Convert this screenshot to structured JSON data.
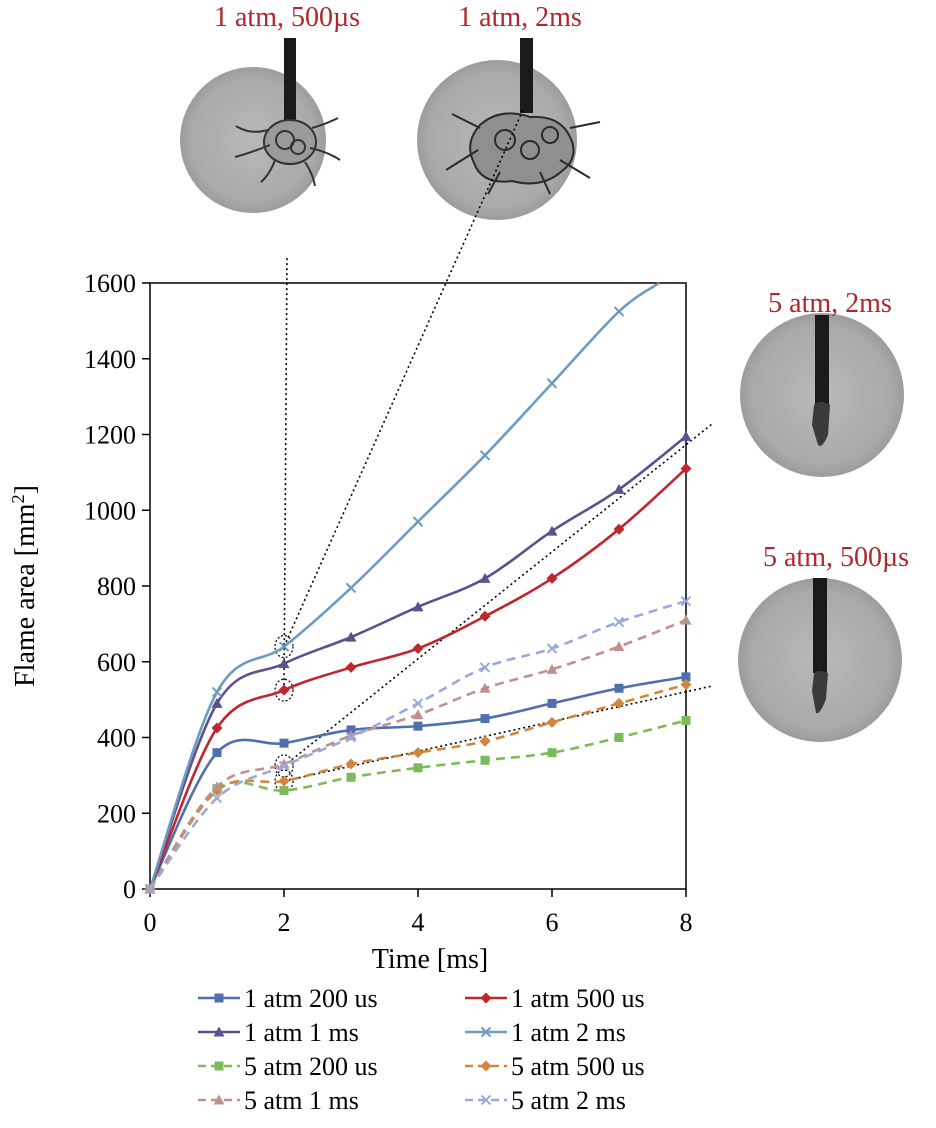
{
  "chart_data": {
    "type": "line",
    "xlabel": "Time [ms]",
    "ylabel": "Flame area [mm",
    "ylabel_sup": "2",
    "ylabel_end": "]",
    "xlim": [
      0,
      8
    ],
    "ylim": [
      0,
      1600
    ],
    "xticks": [
      "0",
      "2",
      "4",
      "6",
      "8"
    ],
    "yticks": [
      "0",
      "200",
      "400",
      "600",
      "800",
      "1000",
      "1200",
      "1400",
      "1600"
    ],
    "grid": false,
    "legend_position": "bottom",
    "series": [
      {
        "name": "1 atm 200 us",
        "color": "#4f6fad",
        "dash": false,
        "marker": "square",
        "x": [
          0,
          1,
          2,
          3,
          4,
          5,
          6,
          7,
          8
        ],
        "y": [
          0,
          360,
          385,
          420,
          430,
          450,
          490,
          530,
          560
        ]
      },
      {
        "name": "1 atm 500 us",
        "color": "#c0262d",
        "dash": false,
        "marker": "diamond",
        "x": [
          0,
          1,
          2,
          3,
          4,
          5,
          6,
          7,
          8
        ],
        "y": [
          0,
          425,
          525,
          585,
          635,
          720,
          820,
          950,
          1110
        ]
      },
      {
        "name": "1 atm 1 ms",
        "color": "#5e4f8f",
        "dash": false,
        "marker": "triangle",
        "x": [
          0,
          1,
          2,
          3,
          4,
          5,
          6,
          7,
          8
        ],
        "y": [
          0,
          490,
          595,
          665,
          745,
          820,
          945,
          1055,
          1195
        ]
      },
      {
        "name": "1 atm 2 ms",
        "color": "#6e9bbf",
        "dash": false,
        "marker": "x",
        "x": [
          0,
          1,
          2,
          3,
          4,
          5,
          6,
          7,
          7.6
        ],
        "y": [
          0,
          520,
          640,
          795,
          970,
          1145,
          1335,
          1525,
          1600
        ]
      },
      {
        "name": "5 atm 200 us",
        "color": "#7cbb5a",
        "dash": true,
        "marker": "square",
        "x": [
          0,
          1,
          2,
          3,
          4,
          5,
          6,
          7,
          8
        ],
        "y": [
          0,
          265,
          260,
          295,
          320,
          340,
          360,
          400,
          445
        ]
      },
      {
        "name": "5 atm 500 us",
        "color": "#d1873b",
        "dash": true,
        "marker": "diamond",
        "x": [
          0,
          1,
          2,
          3,
          4,
          5,
          6,
          7,
          8
        ],
        "y": [
          0,
          260,
          285,
          330,
          360,
          390,
          440,
          490,
          540
        ]
      },
      {
        "name": "5 atm 1 ms",
        "color": "#c0908f",
        "dash": true,
        "marker": "triangle",
        "x": [
          0,
          1,
          2,
          3,
          4,
          5,
          6,
          7,
          8
        ],
        "y": [
          0,
          270,
          330,
          405,
          460,
          530,
          580,
          640,
          710
        ]
      },
      {
        "name": "5 atm 2 ms",
        "color": "#99a9db",
        "dash": true,
        "marker": "x",
        "x": [
          0,
          1,
          2,
          3,
          4,
          5,
          6,
          7,
          8
        ],
        "y": [
          0,
          240,
          325,
          400,
          490,
          585,
          635,
          705,
          760
        ]
      }
    ],
    "annotations": [
      {
        "label": "1 atm, 500µs",
        "color": "#b0262b",
        "target": [
          2,
          525
        ]
      },
      {
        "label": "1 atm, 2ms",
        "color": "#b0262b",
        "target": [
          2,
          640
        ]
      },
      {
        "label": "5 atm, 2ms",
        "color": "#b0262b",
        "target": [
          2,
          325
        ]
      },
      {
        "label": "5 atm, 500µs",
        "color": "#b0262b",
        "target": [
          2,
          285
        ]
      }
    ]
  }
}
